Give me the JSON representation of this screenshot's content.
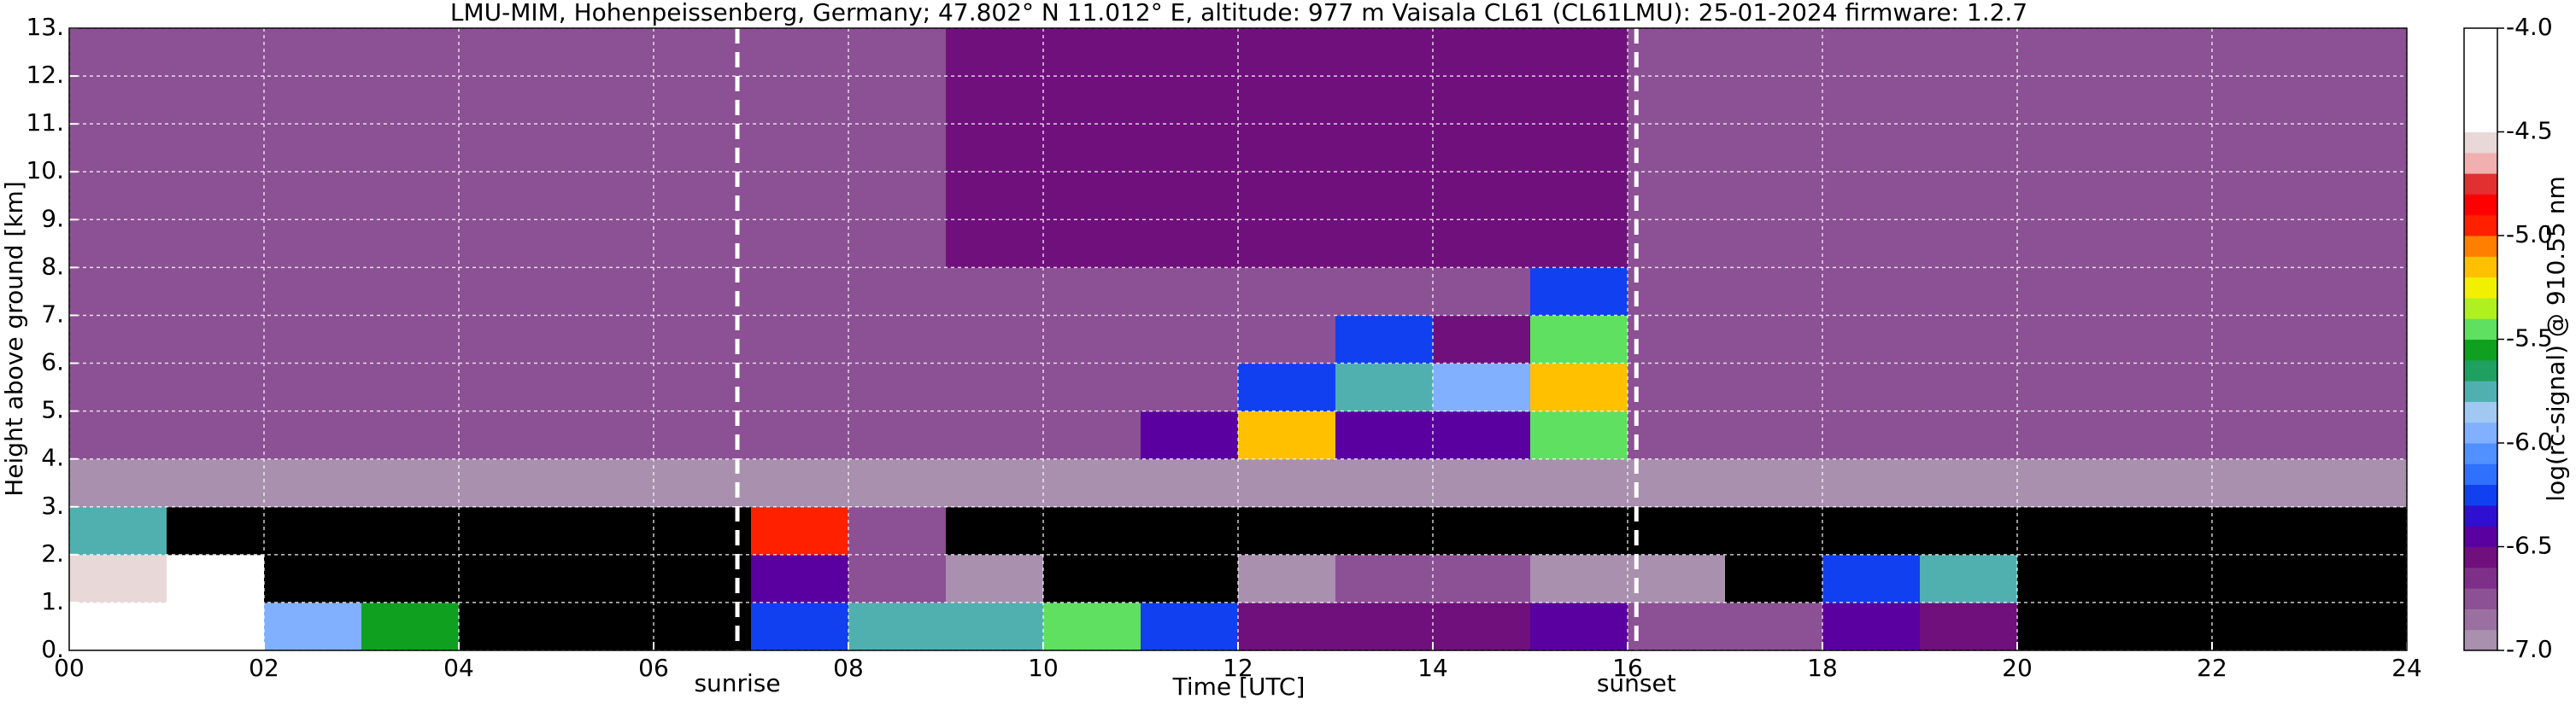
{
  "chart_data": {
    "type": "heatmap",
    "title": "LMU-MIM, Hohenpeissenberg, Germany; 47.802° N 11.012° E, altitude: 977 m    Vaisala CL61 (CL61LMU): 25-01-2024    firmware: 1.2.7",
    "x_label": "Time [UTC]",
    "y_label": "Height above ground [km]",
    "colorbar_label": "log(rc-signal) @ 910.55 nm",
    "xlim": [
      0,
      24
    ],
    "ylim": [
      0,
      13
    ],
    "zlim": [
      -7,
      -4
    ],
    "xticks": [
      {
        "value": 0,
        "label": "00"
      },
      {
        "value": 2,
        "label": "02"
      },
      {
        "value": 4,
        "label": "04"
      },
      {
        "value": 6,
        "label": "06"
      },
      {
        "value": 8,
        "label": "08"
      },
      10,
      12,
      14,
      16,
      18,
      20,
      22,
      24
    ],
    "yticks": [
      {
        "value": 0,
        "label": "0."
      },
      {
        "value": 1,
        "label": "1."
      },
      {
        "value": 2,
        "label": "2."
      },
      {
        "value": 3,
        "label": "3."
      },
      {
        "value": 4,
        "label": "4."
      },
      {
        "value": 5,
        "label": "5."
      },
      {
        "value": 6,
        "label": "6."
      },
      {
        "value": 7,
        "label": "7."
      },
      {
        "value": 8,
        "label": "8."
      },
      {
        "value": 9,
        "label": "9."
      },
      {
        "value": 10,
        "label": "10."
      },
      {
        "value": 11,
        "label": "11."
      },
      {
        "value": 12,
        "label": "12."
      },
      {
        "value": 13,
        "label": "13."
      }
    ],
    "zticks": [
      {
        "value": -4,
        "label": "-4.0"
      },
      -4.5,
      {
        "value": -5,
        "label": "-5.0"
      },
      -5.5,
      {
        "value": -6,
        "label": "-6.0"
      },
      -6.5,
      {
        "value": -7,
        "label": "-7.0"
      }
    ],
    "grid": true,
    "under_color": "#000000",
    "colorscale": [
      "#a890ae",
      "#9a70a0",
      "#8c5094",
      "#7e3088",
      "#70107c",
      "#5a00a0",
      "#3010d0",
      "#1040f0",
      "#3070ff",
      "#5090ff",
      "#80b0ff",
      "#a0c8f0",
      "#50b0b0",
      "#20a060",
      "#10a020",
      "#60e060",
      "#b0f020",
      "#f0f000",
      "#ffc000",
      "#ff8000",
      "#ff2000",
      "#ff0000",
      "#e03030",
      "#f0b0b0",
      "#e8d8d8",
      "#ffffff",
      "#ffffff",
      "#ffffff",
      "#ffffff",
      "#ffffff"
    ],
    "x_bins": [
      0,
      1,
      2,
      3,
      4,
      5,
      6,
      7,
      8,
      9,
      10,
      11,
      12,
      13,
      14,
      15,
      16,
      17,
      18,
      19,
      20,
      21,
      22,
      23,
      24
    ],
    "y_bins": [
      0,
      1,
      2,
      3,
      4,
      5,
      6,
      7,
      8,
      9,
      10,
      11,
      12,
      13
    ],
    "z": [
      [
        -4.3,
        -4.3,
        -6.0,
        -5.6,
        -7.5,
        -7.5,
        -7.5,
        -6.2,
        -5.8,
        -5.7,
        -5.5,
        -6.3,
        -6.6,
        -6.6,
        -6.6,
        -6.4,
        -6.7,
        -6.8,
        -6.5,
        -6.6,
        -7.5,
        -7.5,
        -7.5,
        -7.5
      ],
      [
        -4.6,
        -4.4,
        -7.5,
        -7.5,
        -7.5,
        -7.5,
        -7.5,
        -6.4,
        -6.8,
        -6.9,
        -7.5,
        -7.5,
        -6.9,
        -6.8,
        -6.8,
        -6.9,
        -6.9,
        -7.5,
        -6.2,
        -5.8,
        -7.5,
        -7.5,
        -7.5,
        -7.5
      ],
      [
        -5.8,
        -7.5,
        -7.5,
        -7.5,
        -7.5,
        -7.5,
        -7.5,
        -5.0,
        -6.8,
        -7.2,
        -7.2,
        -7.2,
        -7.2,
        -7.2,
        -7.2,
        -7.2,
        -7.2,
        -7.2,
        -7.2,
        -7.2,
        -7.2,
        -7.2,
        -7.2,
        -7.2
      ],
      [
        -6.95,
        -6.95,
        -6.95,
        -6.95,
        -6.95,
        -6.95,
        -6.95,
        -6.95,
        -6.95,
        -6.95,
        -6.95,
        -6.95,
        -6.95,
        -6.95,
        -6.95,
        -6.95,
        -6.95,
        -6.95,
        -6.95,
        -6.95,
        -6.95,
        -6.95,
        -6.95,
        -6.95
      ],
      [
        -6.7,
        -6.7,
        -6.7,
        -6.7,
        -6.7,
        -6.7,
        -6.7,
        -6.7,
        -6.7,
        -6.7,
        -6.7,
        -6.4,
        -5.2,
        -6.4,
        -6.5,
        -5.5,
        -6.7,
        -6.7,
        -6.7,
        -6.7,
        -6.7,
        -6.7,
        -6.7,
        -6.7
      ],
      [
        -6.7,
        -6.7,
        -6.7,
        -6.7,
        -6.7,
        -6.7,
        -6.7,
        -6.7,
        -6.7,
        -6.7,
        -6.7,
        -6.7,
        -6.3,
        -5.8,
        -5.9,
        -5.2,
        -6.7,
        -6.7,
        -6.7,
        -6.7,
        -6.7,
        -6.7,
        -6.7,
        -6.7
      ],
      [
        -6.7,
        -6.7,
        -6.7,
        -6.7,
        -6.7,
        -6.7,
        -6.7,
        -6.7,
        -6.7,
        -6.7,
        -6.7,
        -6.7,
        -6.7,
        -6.2,
        -6.6,
        -5.4,
        -6.7,
        -6.7,
        -6.7,
        -6.7,
        -6.7,
        -6.7,
        -6.7,
        -6.7
      ],
      [
        -6.7,
        -6.7,
        -6.7,
        -6.7,
        -6.7,
        -6.7,
        -6.7,
        -6.7,
        -6.7,
        -6.7,
        -6.7,
        -6.7,
        -6.7,
        -6.7,
        -6.7,
        -6.3,
        -6.7,
        -6.7,
        -6.7,
        -6.7,
        -6.7,
        -6.7,
        -6.7,
        -6.7
      ],
      [
        -6.7,
        -6.7,
        -6.7,
        -6.7,
        -6.7,
        -6.7,
        -6.7,
        -6.7,
        -6.7,
        -6.6,
        -6.6,
        -6.6,
        -6.6,
        -6.6,
        -6.6,
        -6.6,
        -6.7,
        -6.7,
        -6.7,
        -6.7,
        -6.7,
        -6.7,
        -6.7,
        -6.7
      ],
      [
        -6.7,
        -6.7,
        -6.7,
        -6.7,
        -6.7,
        -6.7,
        -6.7,
        -6.7,
        -6.7,
        -6.6,
        -6.6,
        -6.6,
        -6.6,
        -6.6,
        -6.6,
        -6.6,
        -6.7,
        -6.7,
        -6.7,
        -6.7,
        -6.7,
        -6.7,
        -6.7,
        -6.7
      ],
      [
        -6.7,
        -6.7,
        -6.7,
        -6.7,
        -6.7,
        -6.7,
        -6.7,
        -6.7,
        -6.7,
        -6.6,
        -6.6,
        -6.6,
        -6.6,
        -6.6,
        -6.6,
        -6.6,
        -6.7,
        -6.7,
        -6.7,
        -6.7,
        -6.7,
        -6.7,
        -6.7,
        -6.7
      ],
      [
        -6.7,
        -6.7,
        -6.7,
        -6.7,
        -6.7,
        -6.7,
        -6.7,
        -6.7,
        -6.7,
        -6.6,
        -6.6,
        -6.6,
        -6.6,
        -6.6,
        -6.6,
        -6.6,
        -6.7,
        -6.7,
        -6.7,
        -6.7,
        -6.7,
        -6.7,
        -6.7,
        -6.7
      ],
      [
        -6.7,
        -6.7,
        -6.7,
        -6.7,
        -6.7,
        -6.7,
        -6.7,
        -6.7,
        -6.7,
        -6.6,
        -6.6,
        -6.6,
        -6.6,
        -6.6,
        -6.6,
        -6.6,
        -6.7,
        -6.7,
        -6.7,
        -6.7,
        -6.7,
        -6.7,
        -6.7,
        -6.7
      ]
    ],
    "annotations": [
      {
        "text": "sunrise",
        "x": 6.86
      },
      {
        "text": "sunset",
        "x": 16.09
      }
    ]
  }
}
